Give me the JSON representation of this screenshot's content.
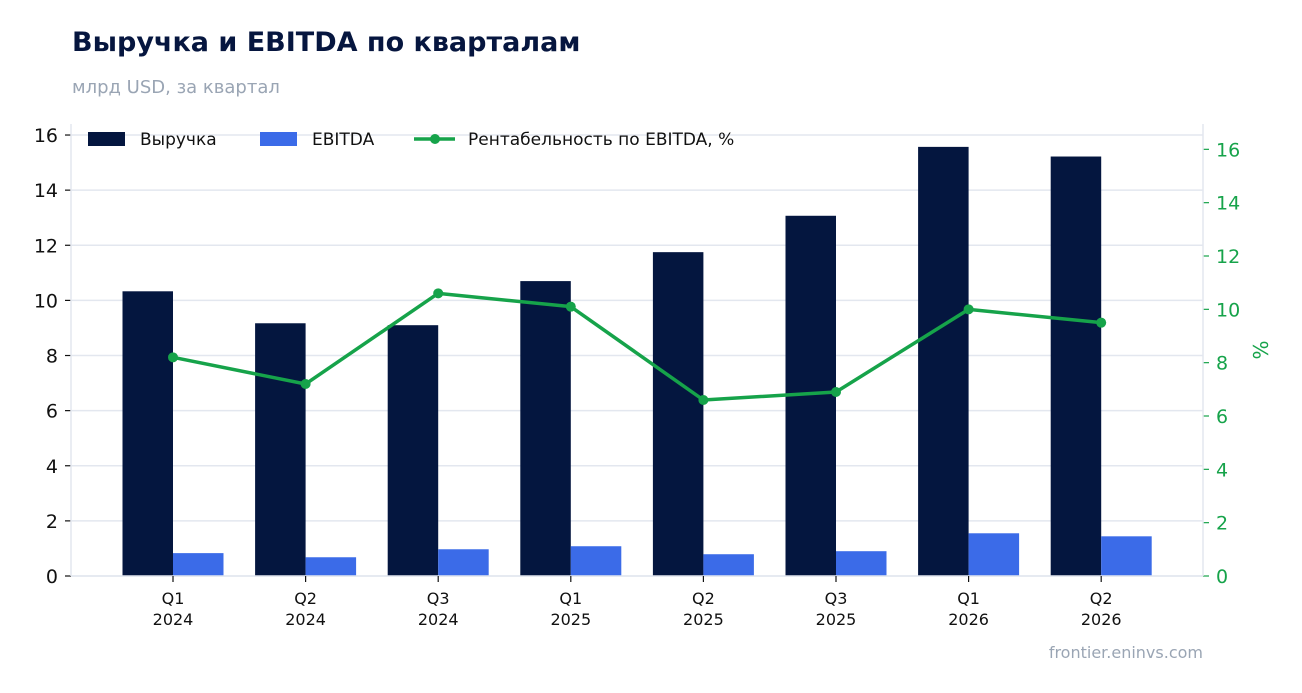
{
  "header": {
    "title": "Выручка и EBITDA по кварталам",
    "subtitle": "млрд USD, за квартал"
  },
  "footer": {
    "source": "frontier.eninvs.com"
  },
  "colors": {
    "revenue": "#04163f",
    "ebitda": "#3b6be8",
    "margin": "#16a34a",
    "grid": "#e3e7ef"
  },
  "chart_data": {
    "type": "bar",
    "categories": [
      "Q1 2024",
      "Q2 2024",
      "Q3 2024",
      "Q1 2025",
      "Q2 2025",
      "Q3 2025",
      "Q1 2026",
      "Q2 2026"
    ],
    "category_lines": [
      [
        "Q1",
        "2024"
      ],
      [
        "Q2",
        "2024"
      ],
      [
        "Q3",
        "2024"
      ],
      [
        "Q1",
        "2025"
      ],
      [
        "Q2",
        "2025"
      ],
      [
        "Q3",
        "2025"
      ],
      [
        "Q1",
        "2026"
      ],
      [
        "Q2",
        "2026"
      ]
    ],
    "series": [
      {
        "name": "Выручка",
        "type": "bar",
        "axis": "left",
        "values": [
          10.33,
          9.17,
          9.1,
          10.7,
          11.75,
          13.07,
          15.57,
          15.22
        ]
      },
      {
        "name": "EBITDA",
        "type": "bar",
        "axis": "left",
        "values": [
          0.83,
          0.68,
          0.97,
          1.08,
          0.79,
          0.9,
          1.55,
          1.44
        ]
      },
      {
        "name": "Рентабельность по EBITDA, %",
        "type": "line",
        "axis": "right",
        "values": [
          8.2,
          7.2,
          10.6,
          10.1,
          6.6,
          6.9,
          10.0,
          9.5
        ]
      }
    ],
    "ylim_left": [
      0,
      16.4
    ],
    "yticks_left": [
      0,
      2,
      4,
      6,
      8,
      10,
      12,
      14,
      16
    ],
    "ylim_right": [
      0,
      16.95
    ],
    "yticks_right": [
      0,
      2,
      4,
      6,
      8,
      10,
      12,
      14,
      16
    ],
    "ylabel_right": "%",
    "grid": true,
    "legend_position": "top-left"
  }
}
